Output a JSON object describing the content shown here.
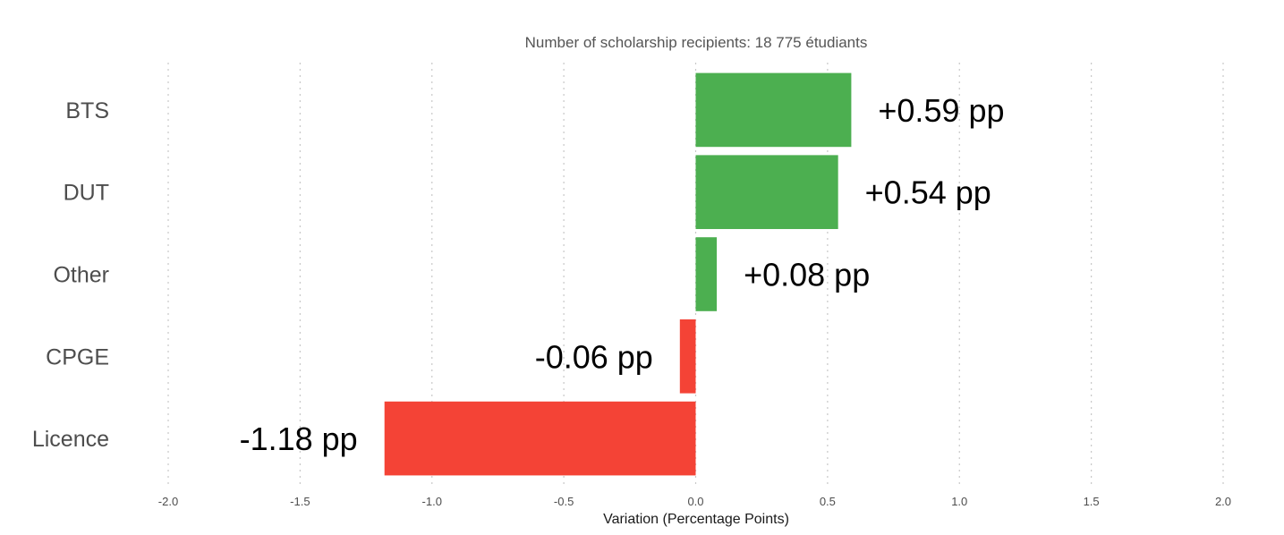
{
  "chart_data": {
    "type": "bar",
    "orientation": "horizontal",
    "title": "",
    "subtitle": "Number of scholarship recipients: 18 775 étudiants",
    "xlabel": "Variation (Percentage Points)",
    "ylabel": "",
    "xlim": [
      -2.0,
      2.0
    ],
    "x_ticks": [
      -2.0,
      -1.5,
      -1.0,
      -0.5,
      0.0,
      0.5,
      1.0,
      1.5,
      2.0
    ],
    "x_tick_labels": [
      "-2.0",
      "-1.5",
      "-1.0",
      "-0.5",
      "0.0",
      "0.5",
      "1.0",
      "1.5",
      "2.0"
    ],
    "grid": "vertical dotted",
    "legend": "none",
    "categories": [
      "BTS",
      "DUT",
      "Other",
      "CPGE",
      "Licence"
    ],
    "values": [
      0.59,
      0.54,
      0.08,
      -0.06,
      -1.18
    ],
    "data_labels": [
      "+0.59 pp",
      "+0.54 pp",
      "+0.08 pp",
      "-0.06 pp",
      "-1.18 pp"
    ],
    "colors": {
      "positive": "#4caf50",
      "negative": "#f44336"
    }
  }
}
